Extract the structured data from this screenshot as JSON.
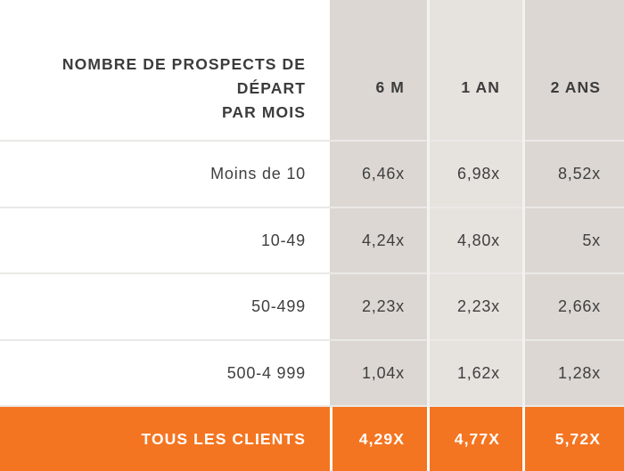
{
  "chart_data": {
    "type": "table",
    "header": {
      "label": "NOMBRE DE PROSPECTS DE\nDÉPART\nPAR MOIS",
      "columns": [
        "6 M",
        "1 AN",
        "2 ANS"
      ]
    },
    "rows": [
      {
        "label": "Moins de 10",
        "values": [
          "6,46x",
          "6,98x",
          "8,52x"
        ]
      },
      {
        "label": "10-49",
        "values": [
          "4,24x",
          "4,80x",
          "5x"
        ]
      },
      {
        "label": "50-499",
        "values": [
          "2,23x",
          "2,23x",
          "2,66x"
        ]
      },
      {
        "label": "500-4 999",
        "values": [
          "1,04x",
          "1,62x",
          "1,28x"
        ]
      }
    ],
    "total": {
      "label": "TOUS LES CLIENTS",
      "values": [
        "4,29X",
        "4,77X",
        "5,72X"
      ]
    }
  },
  "colors": {
    "accent": "#f47521",
    "column_shade_a": "#dcd7d3",
    "column_shade_b": "#e6e2de",
    "text": "#3f3f3f"
  }
}
